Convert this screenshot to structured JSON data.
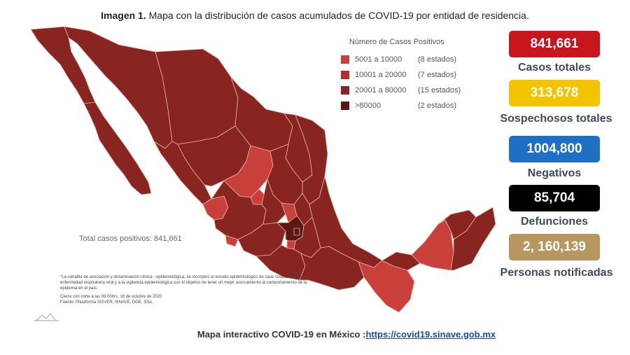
{
  "header": {
    "title_bold": "Imagen 1.",
    "title_rest": " Mapa con la distribución de casos acumulados de COVID-19 por entidad de residencia."
  },
  "legend": {
    "title": "Número de Casos Positivos",
    "items": [
      {
        "range": "5001 a 10000",
        "count": "(8 estados)",
        "color": "#c9403b"
      },
      {
        "range": "10001 a 20000",
        "count": "(7 estados)",
        "color": "#b22f2b"
      },
      {
        "range": "20001 a 80000",
        "count": "(15 estados)",
        "color": "#882521"
      },
      {
        "range": ">80000",
        "count": "(2 estados)",
        "color": "#5c1715"
      }
    ]
  },
  "map": {
    "total_label": "Total casos positivos: 841,661",
    "colors": {
      "base": "#882521",
      "light": "#c9403b",
      "mid": "#b22f2b",
      "dark": "#5c1715",
      "border": "#e8b3ad"
    }
  },
  "notes": {
    "note1": "*La variable de asociación y dictaminación clínica - epidemiológica, se incorporó al estudio epidemiológico de caso sospechoso de enfermedad respiratoria viral y a la vigilancia epidemiológica con el objetivo de tener un mejor acercamiento al comportamiento de la epidemia en el país.",
    "note2": "Cierre con corte a las 09:00hrs, 18 de octubre de 2020",
    "note3": "Fuente: Plataforma SISVER, SINAVE, DGE, SSa."
  },
  "stats": [
    {
      "value": "841,661",
      "label": "Casos totales",
      "color": "#c8161d"
    },
    {
      "value": "313,678",
      "label": "Sospechosos totales",
      "color": "#f5c400"
    },
    {
      "value": "1004,800",
      "label": "Negativos",
      "color": "#1f6fc5"
    },
    {
      "value": "85,704",
      "label": "Defunciones",
      "color": "#000000"
    },
    {
      "value": "2, 160,139",
      "label": "Personas notificadas",
      "color": "#b8965f"
    }
  ],
  "footer": {
    "text": "Mapa interactivo COVID-19 en México :",
    "link": "https://covid19.sinave.gob.mx"
  }
}
